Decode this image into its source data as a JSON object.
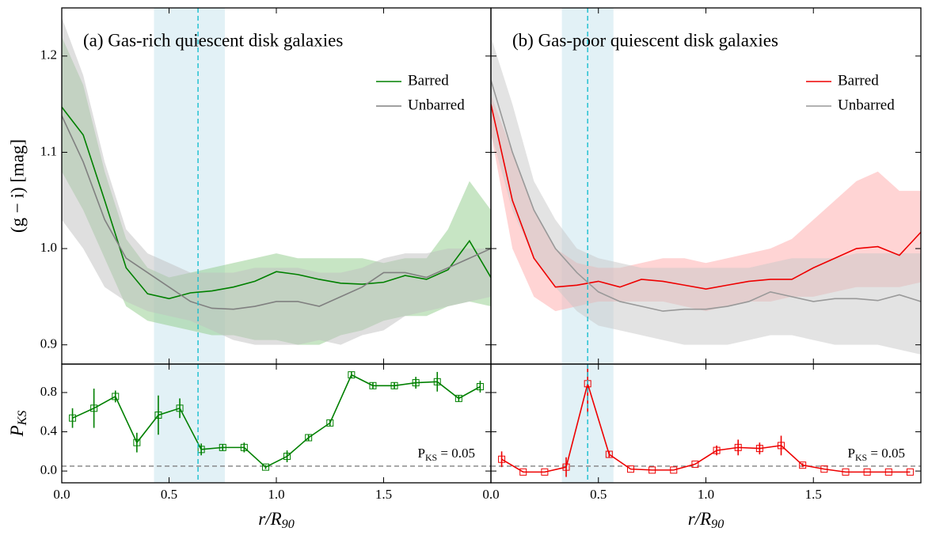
{
  "chart_data": [
    {
      "type": "line",
      "title": "(a) Gas-rich quiescent disk galaxies",
      "ylabel": "(g − i) [mag]",
      "legend": "upper right",
      "xlim": [
        0,
        2
      ],
      "ylim": [
        0.88,
        1.25
      ],
      "yticks": [
        0.9,
        {
          "value": 1,
          "label": "1.0"
        },
        1.1,
        1.2
      ],
      "highlight": [
        0.43,
        0.76
      ],
      "marker_x": 0.635,
      "x": [
        0,
        0.1,
        0.2,
        0.3,
        0.4,
        0.5,
        0.6,
        0.7,
        0.8,
        0.9,
        1,
        1.1,
        1.2,
        1.3,
        1.4,
        1.5,
        1.6,
        1.7,
        1.8,
        1.9,
        2
      ],
      "series": [
        {
          "name": "Barred",
          "color": "#008000",
          "band_color": "#8fcc8a",
          "values": [
            1.147,
            1.118,
            1.05,
            0.98,
            0.953,
            0.948,
            0.954,
            0.956,
            0.96,
            0.966,
            0.976,
            0.973,
            0.968,
            0.964,
            0.963,
            0.965,
            0.972,
            0.968,
            0.978,
            1.008,
            0.97
          ],
          "upper": [
            1.22,
            1.17,
            1.08,
            1.01,
            0.98,
            0.97,
            0.975,
            0.98,
            0.985,
            0.99,
            0.995,
            0.99,
            0.99,
            0.99,
            0.99,
            0.985,
            0.99,
            0.99,
            1.02,
            1.07,
            1.04
          ],
          "lower": [
            1.08,
            1.04,
            0.99,
            0.94,
            0.925,
            0.92,
            0.915,
            0.91,
            0.91,
            0.905,
            0.905,
            0.9,
            0.9,
            0.91,
            0.915,
            0.925,
            0.93,
            0.93,
            0.94,
            0.945,
            0.94
          ]
        },
        {
          "name": "Unbarred",
          "color": "#808080",
          "band_color": "#c0c0c0",
          "values": [
            1.138,
            1.09,
            1.03,
            0.99,
            0.975,
            0.96,
            0.945,
            0.938,
            0.937,
            0.94,
            0.945,
            0.945,
            0.94,
            0.95,
            0.96,
            0.975,
            0.975,
            0.97,
            0.98,
            0.99,
            1.0
          ],
          "upper": [
            1.24,
            1.18,
            1.09,
            1.02,
            0.995,
            0.985,
            0.975,
            0.975,
            0.975,
            0.98,
            0.98,
            0.98,
            0.975,
            0.975,
            0.98,
            0.99,
            0.995,
            0.995,
            1.0,
            1.0,
            1.0
          ],
          "lower": [
            1.03,
            1.0,
            0.96,
            0.945,
            0.935,
            0.93,
            0.925,
            0.915,
            0.905,
            0.9,
            0.9,
            0.9,
            0.905,
            0.9,
            0.91,
            0.915,
            0.93,
            0.935,
            0.94,
            0.945,
            0.95
          ]
        }
      ]
    },
    {
      "type": "line",
      "title": "(b) Gas-poor quiescent disk galaxies",
      "legend": "upper right",
      "xlim": [
        0,
        2
      ],
      "ylim": [
        0.88,
        1.25
      ],
      "highlight": [
        0.33,
        0.57
      ],
      "marker_x": 0.45,
      "x": [
        0,
        0.1,
        0.2,
        0.3,
        0.4,
        0.5,
        0.6,
        0.7,
        0.8,
        0.9,
        1,
        1.1,
        1.2,
        1.3,
        1.4,
        1.5,
        1.6,
        1.7,
        1.8,
        1.9,
        2
      ],
      "series": [
        {
          "name": "Barred",
          "color": "#ee0000",
          "band_color": "#ffaaaa",
          "values": [
            1.15,
            1.05,
            0.99,
            0.96,
            0.962,
            0.966,
            0.96,
            0.968,
            0.966,
            0.962,
            0.958,
            0.962,
            0.966,
            0.968,
            0.968,
            0.98,
            0.99,
            1.0,
            1.002,
            0.993,
            1.017
          ],
          "upper": [
            1.16,
            1.1,
            1.04,
            1.0,
            0.985,
            0.98,
            0.98,
            0.985,
            0.99,
            0.99,
            0.985,
            0.99,
            0.995,
            1.0,
            1.01,
            1.03,
            1.05,
            1.07,
            1.08,
            1.06,
            1.06
          ],
          "lower": [
            1.12,
            1.0,
            0.95,
            0.935,
            0.94,
            0.945,
            0.945,
            0.945,
            0.945,
            0.94,
            0.935,
            0.94,
            0.945,
            0.945,
            0.95,
            0.95,
            0.955,
            0.96,
            0.96,
            0.96,
            0.965
          ]
        },
        {
          "name": "Unbarred",
          "color": "#999999",
          "band_color": "#c8c8c8",
          "values": [
            1.175,
            1.1,
            1.04,
            1.0,
            0.975,
            0.955,
            0.945,
            0.94,
            0.935,
            0.937,
            0.937,
            0.94,
            0.945,
            0.955,
            0.95,
            0.945,
            0.948,
            0.948,
            0.946,
            0.952,
            0.945
          ],
          "upper": [
            1.22,
            1.15,
            1.07,
            1.03,
            1.0,
            0.99,
            0.985,
            0.98,
            0.98,
            0.98,
            0.98,
            0.98,
            0.98,
            0.985,
            0.99,
            0.99,
            0.99,
            0.995,
            0.995,
            0.995,
            0.995
          ],
          "lower": [
            1.12,
            1.04,
            0.99,
            0.96,
            0.935,
            0.92,
            0.915,
            0.91,
            0.905,
            0.9,
            0.9,
            0.9,
            0.905,
            0.91,
            0.91,
            0.905,
            0.9,
            0.9,
            0.9,
            0.895,
            0.89
          ]
        }
      ]
    },
    {
      "type": "line",
      "ylabel": {
        "main": "P",
        "sub": "KS"
      },
      "xlabel": {
        "main": "r/R",
        "sub": "90"
      },
      "annotation": {
        "main": "P",
        "sub": "KS",
        "rest": " = 0.05"
      },
      "threshold": 0.05,
      "xlim": [
        0,
        2
      ],
      "ylim": [
        -0.12,
        1.09
      ],
      "xticks": [
        {
          "value": 0,
          "label": "0.0"
        },
        0.5,
        {
          "value": 1,
          "label": "1.0"
        },
        1.5
      ],
      "yticks": [
        {
          "value": 0,
          "label": "0.0"
        },
        0.4,
        0.8
      ],
      "highlight": [
        0.43,
        0.76
      ],
      "marker_x": 0.635,
      "x": [
        0.05,
        0.15,
        0.25,
        0.35,
        0.45,
        0.55,
        0.65,
        0.75,
        0.85,
        0.95,
        1.05,
        1.15,
        1.25,
        1.35,
        1.45,
        1.55,
        1.65,
        1.75,
        1.85,
        1.95
      ],
      "series": [
        {
          "color": "#008000",
          "values": [
            0.54,
            0.64,
            0.76,
            0.29,
            0.57,
            0.64,
            0.22,
            0.24,
            0.24,
            0.04,
            0.15,
            0.34,
            0.49,
            0.98,
            0.87,
            0.87,
            0.9,
            0.91,
            0.74,
            0.86
          ],
          "errors": [
            0.1,
            0.2,
            0.06,
            0.1,
            0.2,
            0.1,
            0.06,
            0.03,
            0.05,
            0.02,
            0.06,
            0.03,
            0.03,
            0.03,
            0.03,
            0.03,
            0.06,
            0.1,
            0.03,
            0.06
          ]
        }
      ]
    },
    {
      "type": "line",
      "xlabel": {
        "main": "r/R",
        "sub": "90"
      },
      "annotation": {
        "main": "P",
        "sub": "KS",
        "rest": " = 0.05"
      },
      "threshold": 0.05,
      "xlim": [
        0,
        2
      ],
      "ylim": [
        -0.12,
        1.09
      ],
      "xticks": [
        {
          "value": 0,
          "label": "0.0"
        },
        0.5,
        {
          "value": 1,
          "label": "1.0"
        },
        1.5
      ],
      "highlight": [
        0.33,
        0.57
      ],
      "marker_x": 0.45,
      "x": [
        0.05,
        0.15,
        0.25,
        0.35,
        0.45,
        0.55,
        0.65,
        0.75,
        0.85,
        0.95,
        1.05,
        1.15,
        1.25,
        1.35,
        1.45,
        1.55,
        1.65,
        1.75,
        1.85,
        1.95
      ],
      "series": [
        {
          "color": "#ee0000",
          "values": [
            0.12,
            -0.01,
            -0.01,
            0.04,
            0.89,
            0.17,
            0.02,
            0.01,
            0.01,
            0.07,
            0.21,
            0.24,
            0.23,
            0.26,
            0.06,
            0.02,
            -0.01,
            -0.01,
            -0.01,
            -0.01
          ],
          "errors": [
            0.08,
            0,
            0,
            0.1,
            0.3,
            0.03,
            0,
            0,
            0,
            0,
            0.05,
            0.08,
            0.06,
            0.1,
            0.02,
            0,
            0,
            0,
            0,
            0
          ]
        }
      ]
    }
  ]
}
